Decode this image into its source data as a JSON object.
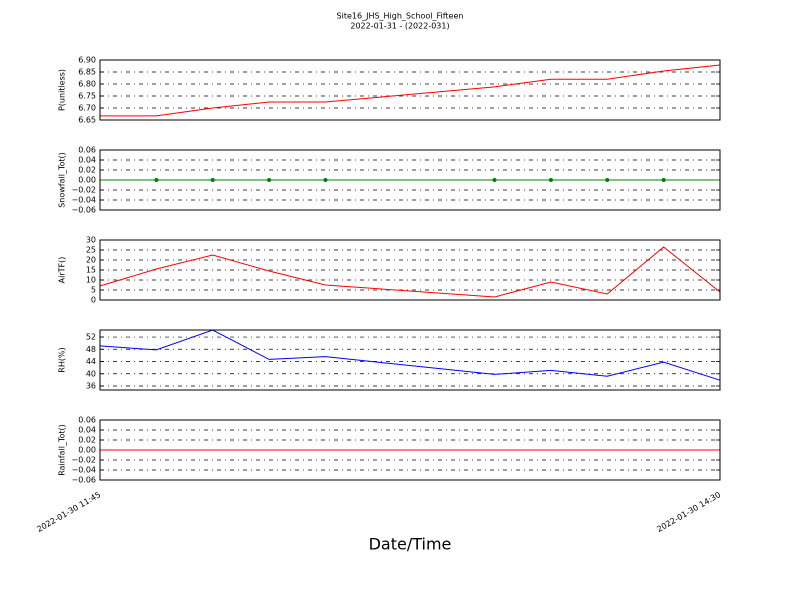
{
  "title": "Site16_JHS_High_School_Fifteen",
  "subtitle": "2022-01-31 - (2022-031)",
  "xlabel": "Date/Time",
  "x": [
    "2022-01-30 11:45",
    "2022-01-30 12:00",
    "2022-01-30 12:15",
    "2022-01-30 12:30",
    "2022-01-30 12:45",
    "2022-01-30 13:30",
    "2022-01-30 13:45",
    "2022-01-30 14:00",
    "2022-01-30 14:15",
    "2022-01-30 14:30"
  ],
  "xlim": [
    "2022-01-30 11:45",
    "2022-01-30 14:30"
  ],
  "xticks": [
    "2022-01-30 11:45",
    "2022-01-30 14:30"
  ],
  "chart_data": [
    {
      "type": "line",
      "ylabel": "P(unitless)",
      "color": "#ff0000",
      "grid": true,
      "values": [
        6.667,
        6.667,
        6.7,
        6.725,
        6.725,
        6.788,
        6.82,
        6.82,
        6.854,
        6.879
      ],
      "ylim": [
        6.65,
        6.9
      ],
      "yticks": [
        6.65,
        {
          "value": 6.7,
          "label": "6.70"
        },
        6.75,
        {
          "value": 6.8,
          "label": "6.80"
        },
        6.85,
        {
          "value": 6.9,
          "label": "6.90"
        }
      ]
    },
    {
      "type": "line",
      "ylabel": "Snowfall_Tot()",
      "color": "#008000",
      "marker": "o",
      "grid": true,
      "values": [
        0,
        0,
        0,
        0,
        0,
        0,
        0,
        0,
        0,
        0
      ],
      "ylim": [
        -0.06,
        0.06
      ],
      "yticks": [
        {
          "value": -0.06,
          "label": "−0.06"
        },
        {
          "value": -0.04,
          "label": "−0.04"
        },
        {
          "value": -0.02,
          "label": "−0.02"
        },
        {
          "value": 0,
          "label": "0.00"
        },
        {
          "value": 0.02,
          "label": "0.02"
        },
        {
          "value": 0.04,
          "label": "0.04"
        },
        {
          "value": 0.06,
          "label": "0.06"
        }
      ]
    },
    {
      "type": "line",
      "ylabel": "AirTF()",
      "color": "#ff0000",
      "grid": true,
      "values": [
        7,
        15.5,
        22.5,
        14.5,
        7.5,
        1.5,
        9,
        3,
        26.5,
        4
      ],
      "ylim": [
        0,
        30
      ],
      "yticks": [
        0,
        5,
        10,
        15,
        20,
        25,
        30
      ]
    },
    {
      "type": "line",
      "ylabel": "RH(%)",
      "color": "#0000ff",
      "grid": true,
      "values": [
        49.1,
        47.8,
        54.3,
        44.7,
        45.6,
        39.8,
        41.1,
        39.2,
        43.8,
        37.9
      ],
      "ylim": [
        34.7,
        54.3
      ],
      "yticks": [
        36,
        40,
        44,
        48,
        52
      ]
    },
    {
      "type": "line",
      "ylabel": "Rainfall_Tot()",
      "color": "#ff0000",
      "grid": true,
      "values": [
        0,
        0,
        0,
        0,
        0,
        0,
        0,
        0,
        0,
        0
      ],
      "ylim": [
        -0.06,
        0.06
      ],
      "yticks": [
        {
          "value": -0.06,
          "label": "−0.06"
        },
        {
          "value": -0.04,
          "label": "−0.04"
        },
        {
          "value": -0.02,
          "label": "−0.02"
        },
        {
          "value": 0,
          "label": "0.00"
        },
        {
          "value": 0.02,
          "label": "0.02"
        },
        {
          "value": 0.04,
          "label": "0.04"
        },
        {
          "value": 0.06,
          "label": "0.06"
        }
      ]
    }
  ]
}
